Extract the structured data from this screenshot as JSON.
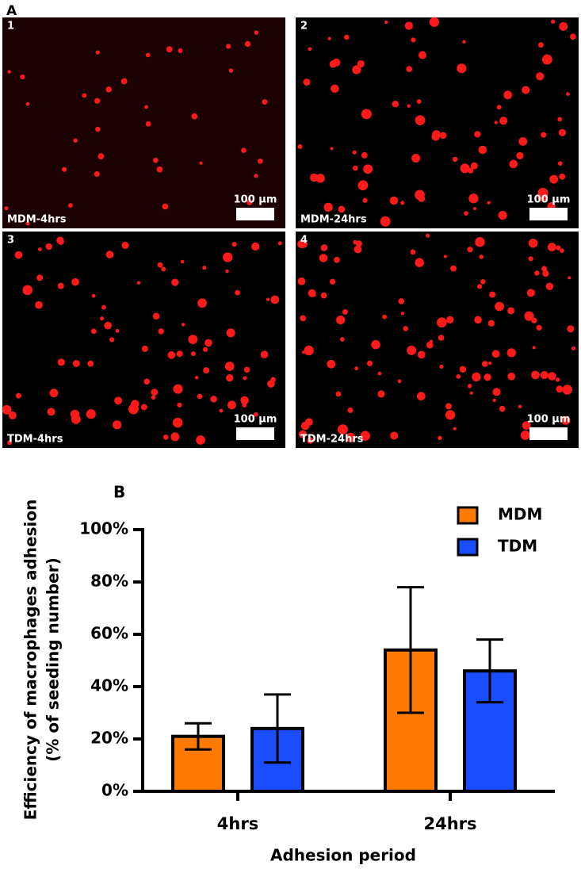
{
  "panel_a": {
    "label": "A",
    "images": [
      {
        "number": "1",
        "caption": "MDM-4hrs",
        "scale": "100 μm"
      },
      {
        "number": "2",
        "caption": "MDM-24hrs",
        "scale": "100 μm"
      },
      {
        "number": "3",
        "caption": "TDM-4hrs",
        "scale": "100 μm"
      },
      {
        "number": "4",
        "caption": "TDM-24hrs",
        "scale": "100 μm"
      }
    ]
  },
  "chart_data": {
    "type": "bar",
    "label": "B",
    "categories": [
      "4hrs",
      "24hrs"
    ],
    "series": [
      {
        "name": "MDM",
        "color": "#ff7a00",
        "values": [
          21,
          54
        ],
        "errors": [
          5,
          24
        ]
      },
      {
        "name": "TDM",
        "color": "#1a4dff",
        "values": [
          24,
          46
        ],
        "errors": [
          13,
          12
        ]
      }
    ],
    "ylim": [
      0,
      100
    ],
    "yticks": [
      {
        "value": 0,
        "label": "0%"
      },
      {
        "value": 20,
        "label": "20%"
      },
      {
        "value": 40,
        "label": "40%"
      },
      {
        "value": 60,
        "label": "60%"
      },
      {
        "value": 80,
        "label": "80%"
      },
      {
        "value": 100,
        "label": "100%"
      }
    ],
    "xlabel": "Adhesion period",
    "ylabel": [
      "Efficiency of macrophages adhesion",
      "(% of seeding number)"
    ],
    "legend": "top-right"
  }
}
